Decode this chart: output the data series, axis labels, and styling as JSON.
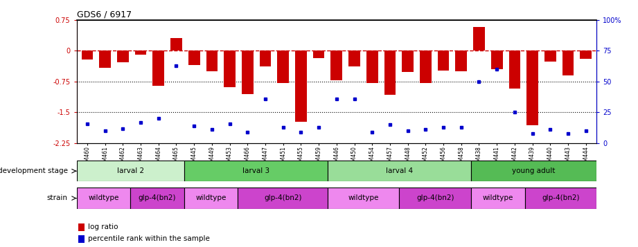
{
  "title": "GDS6 / 6917",
  "samples": [
    "GSM460",
    "GSM461",
    "GSM462",
    "GSM463",
    "GSM464",
    "GSM465",
    "GSM445",
    "GSM449",
    "GSM453",
    "GSM466",
    "GSM447",
    "GSM451",
    "GSM455",
    "GSM459",
    "GSM446",
    "GSM450",
    "GSM454",
    "GSM457",
    "GSM448",
    "GSM452",
    "GSM456",
    "GSM458",
    "GSM438",
    "GSM441",
    "GSM442",
    "GSM439",
    "GSM440",
    "GSM443",
    "GSM444"
  ],
  "log_ratio": [
    -0.22,
    -0.42,
    -0.28,
    -0.1,
    -0.85,
    0.3,
    -0.35,
    -0.5,
    -0.88,
    -1.05,
    -0.38,
    -0.78,
    -1.72,
    -0.18,
    -0.72,
    -0.38,
    -0.78,
    -1.08,
    -0.52,
    -0.78,
    -0.48,
    -0.5,
    0.58,
    -0.45,
    -0.92,
    -1.82,
    -0.26,
    -0.6,
    -0.2
  ],
  "percentile": [
    16,
    10,
    12,
    17,
    20,
    63,
    14,
    11,
    16,
    9,
    36,
    13,
    9,
    13,
    36,
    36,
    9,
    15,
    10,
    11,
    13,
    13,
    50,
    60,
    25,
    8,
    11,
    8,
    10
  ],
  "dev_stages": [
    {
      "label": "larval 2",
      "start": 0,
      "end": 6,
      "color": "#ccf0cc"
    },
    {
      "label": "larval 3",
      "start": 6,
      "end": 14,
      "color": "#66cc66"
    },
    {
      "label": "larval 4",
      "start": 14,
      "end": 22,
      "color": "#99dd99"
    },
    {
      "label": "young adult",
      "start": 22,
      "end": 29,
      "color": "#55bb55"
    }
  ],
  "strains": [
    {
      "label": "wildtype",
      "start": 0,
      "end": 3,
      "color": "#ee88ee"
    },
    {
      "label": "glp-4(bn2)",
      "start": 3,
      "end": 6,
      "color": "#cc44cc"
    },
    {
      "label": "wildtype",
      "start": 6,
      "end": 9,
      "color": "#ee88ee"
    },
    {
      "label": "glp-4(bn2)",
      "start": 9,
      "end": 14,
      "color": "#cc44cc"
    },
    {
      "label": "wildtype",
      "start": 14,
      "end": 18,
      "color": "#ee88ee"
    },
    {
      "label": "glp-4(bn2)",
      "start": 18,
      "end": 22,
      "color": "#cc44cc"
    },
    {
      "label": "wildtype",
      "start": 22,
      "end": 25,
      "color": "#ee88ee"
    },
    {
      "label": "glp-4(bn2)",
      "start": 25,
      "end": 29,
      "color": "#cc44cc"
    }
  ],
  "ylim_left": [
    -2.25,
    0.75
  ],
  "ylim_right": [
    0,
    100
  ],
  "yticks_left": [
    0.75,
    0.0,
    -0.75,
    -1.5,
    -2.25
  ],
  "ytick_labels_left": [
    "0.75",
    "0",
    "-0.75",
    "-1.5",
    "-2.25"
  ],
  "yticks_right": [
    100,
    75,
    50,
    25,
    0
  ],
  "ytick_labels_right": [
    "100%",
    "75",
    "50",
    "25",
    "0"
  ],
  "bar_color": "#cc0000",
  "dot_color": "#0000cc",
  "zero_line_color": "#cc0000",
  "grid_color": "#000000",
  "background_color": "#ffffff",
  "dev_label": "development stage",
  "strain_label": "strain",
  "legend_bar": "log ratio",
  "legend_dot": "percentile rank within the sample"
}
